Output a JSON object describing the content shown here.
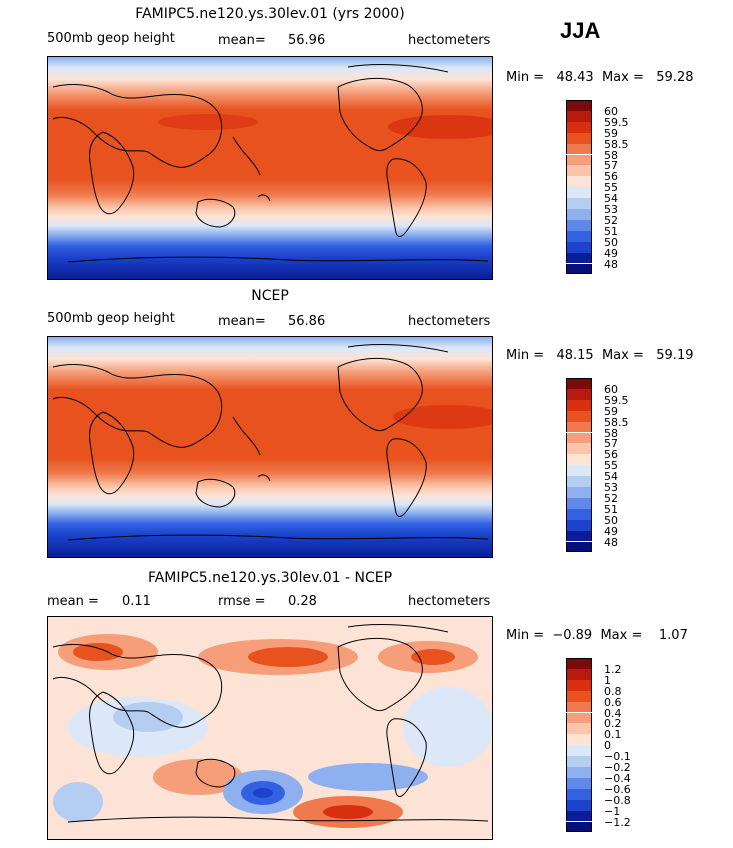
{
  "season": "JJA",
  "panels": [
    {
      "title": "FAMIPC5.ne120.ys.30lev.01 (yrs 2000)",
      "left_label": "500mb geop height",
      "stat1_label": "mean=",
      "stat1_value": "56.96",
      "stat2_label": "",
      "stat2_value": "",
      "units": "hectometers",
      "minmax": "Min =   48.43  Max =   59.28",
      "scale": "abs",
      "levels": [
        "60",
        "59.5",
        "59",
        "58.5",
        "58",
        "57",
        "56",
        "55",
        "54",
        "53",
        "52",
        "51",
        "50",
        "49",
        "48"
      ]
    },
    {
      "title": "NCEP",
      "left_label": "500mb geop height",
      "stat1_label": "mean=",
      "stat1_value": "56.86",
      "stat2_label": "",
      "stat2_value": "",
      "units": "hectometers",
      "minmax": "Min =   48.15  Max =   59.19",
      "scale": "abs",
      "levels": [
        "60",
        "59.5",
        "59",
        "58.5",
        "58",
        "57",
        "56",
        "55",
        "54",
        "53",
        "52",
        "51",
        "50",
        "49",
        "48"
      ]
    },
    {
      "title": "FAMIPC5.ne120.ys.30lev.01 - NCEP",
      "left_label": "",
      "stat1_label": "mean =",
      "stat1_value": "0.11",
      "stat2_label": "rmse =",
      "stat2_value": "0.28",
      "units": "hectometers",
      "minmax": "Min =  −0.89  Max =    1.07",
      "scale": "diff",
      "levels": [
        "1.2",
        "1",
        "0.8",
        "0.6",
        "0.4",
        "0.2",
        "0.1",
        "0",
        "−0.1",
        "−0.2",
        "−0.4",
        "−0.6",
        "−0.8",
        "−1",
        "−1.2"
      ]
    }
  ],
  "colors": {
    "abs": [
      "#7d0a0a",
      "#b81a0e",
      "#d8300f",
      "#e7521f",
      "#f07a4d",
      "#f59e79",
      "#fac5aa",
      "#fde3d6",
      "#dce8f7",
      "#b6cdf2",
      "#8eb0ee",
      "#5e88ea",
      "#3262e2",
      "#1b43cc",
      "#0a1e9a",
      "#05107a"
    ],
    "diff": [
      "#7d0a0a",
      "#b81a0e",
      "#d8300f",
      "#e7521f",
      "#f07a4d",
      "#f59e79",
      "#fac5aa",
      "#fde3d6",
      "#dce8f7",
      "#b6cdf2",
      "#8eb0ee",
      "#5e88ea",
      "#3262e2",
      "#1b43cc",
      "#0a1e9a",
      "#05107a"
    ]
  }
}
